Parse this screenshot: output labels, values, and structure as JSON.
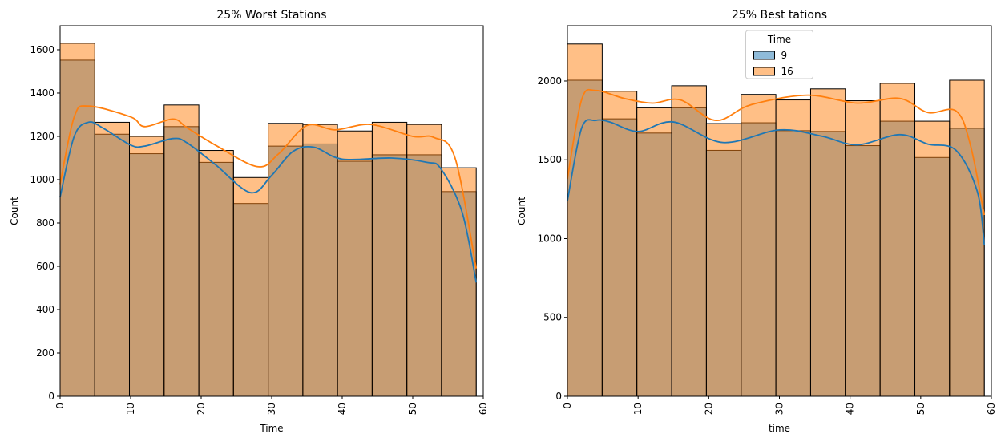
{
  "chart_data": [
    {
      "type": "histogram",
      "title": "25% Worst Stations",
      "xlabel": "Time",
      "ylabel": "Count",
      "bins": [
        0,
        4.92,
        9.83,
        14.75,
        19.67,
        24.58,
        29.5,
        34.42,
        39.33,
        44.25,
        49.17,
        54.08,
        59
      ],
      "xlim": [
        0,
        60
      ],
      "xticks": [
        0,
        10,
        20,
        30,
        40,
        50,
        60
      ],
      "ylim": [
        0,
        1711
      ],
      "yticks": [
        0,
        200,
        400,
        600,
        800,
        1000,
        1200,
        1400,
        1600
      ],
      "series": [
        {
          "color": "#1f77b4",
          "values": [
            1552,
            1210,
            1120,
            1245,
            1080,
            890,
            1155,
            1165,
            1085,
            1115,
            1115,
            945
          ],
          "kde_x": [
            0,
            2,
            4,
            6,
            10,
            12,
            16,
            18,
            22,
            27,
            30,
            33,
            36,
            40,
            47,
            52,
            54,
            57,
            59
          ],
          "kde": [
            920,
            1200,
            1265,
            1240,
            1160,
            1155,
            1190,
            1170,
            1070,
            940,
            1020,
            1130,
            1150,
            1095,
            1100,
            1080,
            1050,
            850,
            525
          ]
        },
        {
          "color": "#ff7f0e",
          "values": [
            1630,
            1265,
            1200,
            1345,
            1135,
            1010,
            1260,
            1255,
            1225,
            1265,
            1255,
            1055
          ],
          "kde_x": [
            0,
            2,
            4,
            10,
            12,
            16,
            18,
            22,
            28,
            31,
            35,
            39,
            44,
            50,
            53,
            56,
            59
          ],
          "kde": [
            980,
            1290,
            1340,
            1290,
            1245,
            1280,
            1240,
            1160,
            1060,
            1120,
            1250,
            1230,
            1255,
            1200,
            1195,
            1100,
            590
          ]
        }
      ]
    },
    {
      "type": "histogram",
      "title": "25% Best tations",
      "xlabel": "time",
      "ylabel": "Count",
      "bins": [
        0,
        4.92,
        9.83,
        14.75,
        19.67,
        24.58,
        29.5,
        34.42,
        39.33,
        44.25,
        49.17,
        54.08,
        59
      ],
      "xlim": [
        0,
        60
      ],
      "xticks": [
        0,
        10,
        20,
        30,
        40,
        50,
        60
      ],
      "ylim": [
        0,
        2351
      ],
      "yticks": [
        0,
        500,
        1000,
        1500,
        2000
      ],
      "legend": "upper center",
      "legend_title": "Time",
      "series": [
        {
          "name": "9",
          "color": "#1f77b4",
          "values": [
            2005,
            1760,
            1670,
            1830,
            1560,
            1735,
            1685,
            1680,
            1590,
            1745,
            1515,
            1700
          ],
          "kde_x": [
            0,
            2,
            4,
            6,
            10,
            15,
            22,
            30,
            36,
            41,
            47,
            51,
            55,
            58,
            59
          ],
          "kde": [
            1240,
            1700,
            1750,
            1740,
            1680,
            1740,
            1610,
            1690,
            1650,
            1595,
            1660,
            1600,
            1560,
            1300,
            960
          ]
        },
        {
          "name": "16",
          "color": "#ff7f0e",
          "values": [
            2235,
            1935,
            1830,
            1970,
            1730,
            1915,
            1880,
            1950,
            1875,
            1985,
            1745,
            2005
          ],
          "kde_x": [
            0,
            2,
            4,
            8,
            12,
            16,
            21,
            26,
            34,
            41,
            47,
            51,
            55,
            57,
            59
          ],
          "kde": [
            1380,
            1880,
            1940,
            1890,
            1860,
            1880,
            1750,
            1850,
            1910,
            1860,
            1890,
            1800,
            1810,
            1600,
            1150
          ]
        }
      ]
    }
  ]
}
